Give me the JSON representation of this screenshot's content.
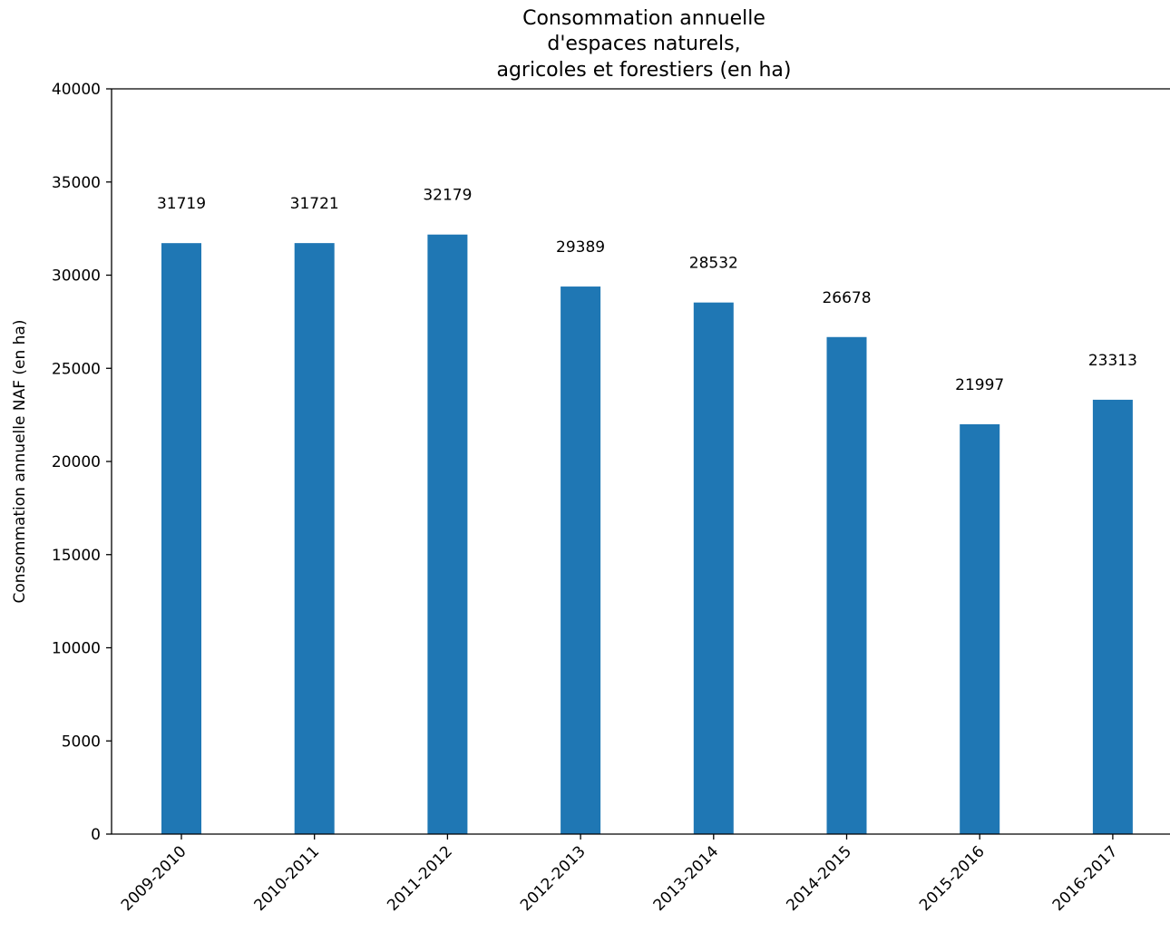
{
  "chart_data": {
    "type": "bar",
    "title_lines": [
      "Consommation annuelle",
      "d'espaces naturels,",
      "agricoles et forestiers (en ha)"
    ],
    "xlabel": "",
    "ylabel": "Consommation annuelle NAF (en ha)",
    "categories": [
      "2009-2010",
      "2010-2011",
      "2011-2012",
      "2012-2013",
      "2013-2014",
      "2014-2015",
      "2015-2016",
      "2016-2017"
    ],
    "values": [
      31719,
      31721,
      32179,
      29389,
      28532,
      26678,
      21997,
      23313
    ],
    "ylim": [
      0,
      40000
    ],
    "yticks": [
      0,
      5000,
      10000,
      15000,
      20000,
      25000,
      30000,
      35000,
      40000
    ],
    "bar_color": "#1f77b4",
    "grid": false,
    "legend": "none"
  }
}
